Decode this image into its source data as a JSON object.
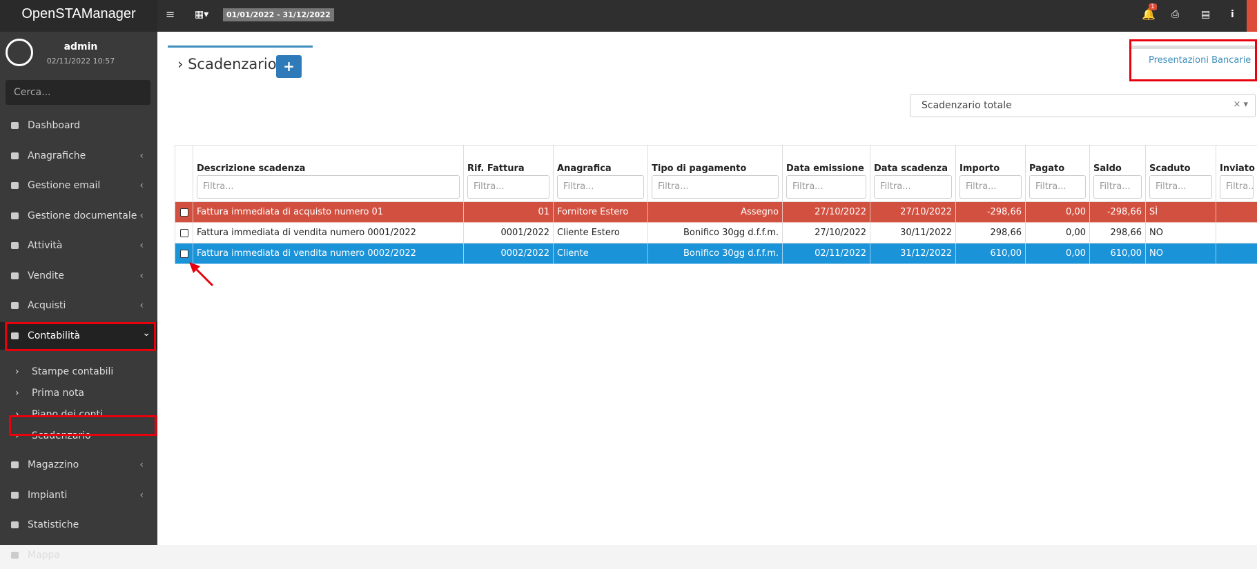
{
  "header": {
    "app_name": "OpenSTAManager",
    "date_range": "01/01/2022 - 31/12/2022",
    "notifications": "1"
  },
  "sidebar": {
    "user": "admin",
    "datetime": "02/11/2022 10:57",
    "search_placeholder": "Cerca...",
    "menu": [
      "Dashboard",
      "Anagrafiche",
      "Gestione email",
      "Gestione documentale",
      "Attività",
      "Vendite",
      "Acquisti",
      "Contabilità"
    ],
    "submenu": [
      "Stampe contabili",
      "Prima nota",
      "Piano dei conti",
      "Scadenzario"
    ],
    "menu_after": [
      "Magazzino",
      "Impianti",
      "Statistiche",
      "Mappa"
    ]
  },
  "page": {
    "title": "Scadenzario",
    "plugin_link": "Presentazioni Bancarie",
    "segment_select": "Scadenzario totale"
  },
  "table": {
    "headers": [
      "Descrizione scadenza",
      "Rif. Fattura",
      "Anagrafica",
      "Tipo di pagamento",
      "Data emissione",
      "Data scadenza",
      "Importo",
      "Pagato",
      "Saldo",
      "Scaduto",
      "Inviato"
    ],
    "filter_placeholder": "Filtra...",
    "rows": [
      [
        "Fattura immediata di acquisto numero 01",
        "01",
        "Fornitore Estero",
        "Assegno",
        "27/10/2022",
        "27/10/2022",
        "-298,66",
        "0,00",
        "-298,66",
        "SÌ",
        ""
      ],
      [
        "Fattura immediata di vendita numero 0001/2022",
        "0001/2022",
        "Cliente Estero",
        "Bonifico 30gg d.f.f.m.",
        "27/10/2022",
        "30/11/2022",
        "298,66",
        "0,00",
        "298,66",
        "NO",
        ""
      ],
      [
        "Fattura immediata di vendita numero 0002/2022",
        "0002/2022",
        "Cliente",
        "Bonifico 30gg d.f.f.m.",
        "02/11/2022",
        "31/12/2022",
        "610,00",
        "0,00",
        "610,00",
        "NO",
        ""
      ]
    ]
  }
}
